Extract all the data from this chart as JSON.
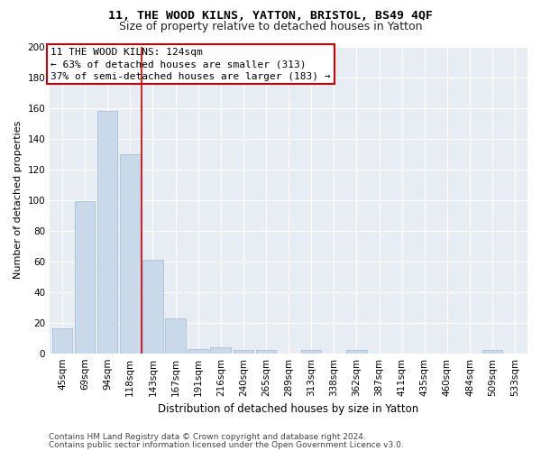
{
  "title1": "11, THE WOOD KILNS, YATTON, BRISTOL, BS49 4QF",
  "title2": "Size of property relative to detached houses in Yatton",
  "xlabel": "Distribution of detached houses by size in Yatton",
  "ylabel": "Number of detached properties",
  "categories": [
    "45sqm",
    "69sqm",
    "94sqm",
    "118sqm",
    "143sqm",
    "167sqm",
    "191sqm",
    "216sqm",
    "240sqm",
    "265sqm",
    "289sqm",
    "313sqm",
    "338sqm",
    "362sqm",
    "387sqm",
    "411sqm",
    "435sqm",
    "460sqm",
    "484sqm",
    "509sqm",
    "533sqm"
  ],
  "bar_values": [
    16,
    99,
    158,
    130,
    61,
    23,
    3,
    4,
    2,
    2,
    0,
    2,
    0,
    2,
    0,
    0,
    0,
    0,
    0,
    2,
    0
  ],
  "bar_color": "#c9d9ea",
  "bar_edgecolor": "#a8c0d6",
  "vline_x": 3.5,
  "vline_color": "#cc0000",
  "annotation_text": "11 THE WOOD KILNS: 124sqm\n← 63% of detached houses are smaller (313)\n37% of semi-detached houses are larger (183) →",
  "annotation_box_facecolor": "#ffffff",
  "annotation_box_edgecolor": "#cc0000",
  "ylim": [
    0,
    200
  ],
  "yticks": [
    0,
    20,
    40,
    60,
    80,
    100,
    120,
    140,
    160,
    180,
    200
  ],
  "background_color": "#e8edf4",
  "footer1": "Contains HM Land Registry data © Crown copyright and database right 2024.",
  "footer2": "Contains public sector information licensed under the Open Government Licence v3.0.",
  "title1_fontsize": 9.5,
  "title2_fontsize": 9,
  "xlabel_fontsize": 8.5,
  "ylabel_fontsize": 8,
  "tick_fontsize": 7.5,
  "annotation_fontsize": 8,
  "footer_fontsize": 6.5
}
